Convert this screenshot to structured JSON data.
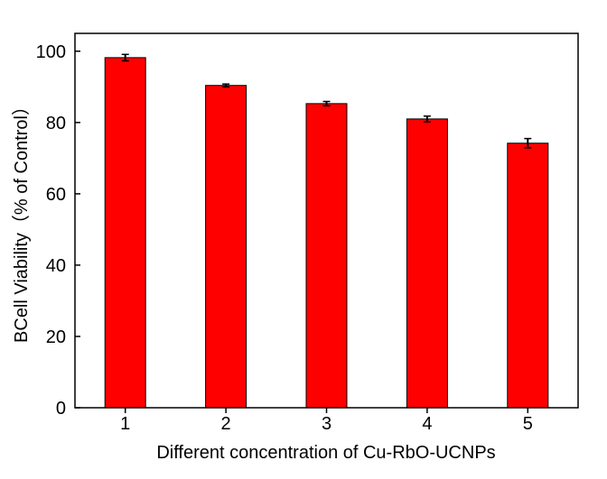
{
  "chart_data": {
    "type": "bar",
    "title": "",
    "xlabel": "Different concentration of Cu-RbO-UCNPs",
    "ylabel": "BCell Viability（% of Control）",
    "categories": [
      "1",
      "2",
      "3",
      "4",
      "5"
    ],
    "values": [
      98.2,
      90.4,
      85.3,
      81.0,
      74.2
    ],
    "errors": [
      0.9,
      0.4,
      0.6,
      0.8,
      1.3
    ],
    "ylim": [
      0,
      105
    ],
    "yticks": [
      0,
      20,
      40,
      60,
      80,
      100
    ],
    "bar_color": "#ff0000",
    "error_color": "#000000",
    "grid": false,
    "legend": "none"
  }
}
